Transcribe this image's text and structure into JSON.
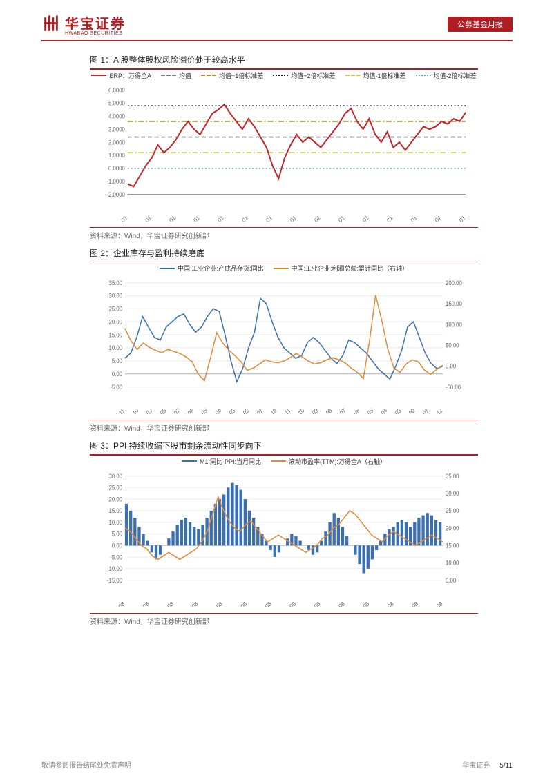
{
  "header": {
    "brand_cn": "华宝证券",
    "brand_en": "HWABAO SECURITIES",
    "tag": "公募基金月报",
    "logo_color": "#b01e23"
  },
  "footer": {
    "disclaimer": "敬请参阅报告结尾处免责声明",
    "brand": "华宝证券",
    "page": "5/11"
  },
  "fig1": {
    "title": "图 1：A 股整体股权风险溢价处于较高水平",
    "source": "资料来源：Wind，华宝证券研究创新部",
    "legend": [
      {
        "label": "ERP：万得全A",
        "color": "#c0272d",
        "dash": "solid"
      },
      {
        "label": "均值",
        "color": "#808080",
        "dash": "dashed"
      },
      {
        "label": "均值+1倍标准差",
        "color": "#b08c2a",
        "dash": "dashdot"
      },
      {
        "label": "均值+2倍标准差",
        "color": "#1a1a3a",
        "dash": "dotted"
      },
      {
        "label": "均值-1倍标准差",
        "color": "#c9c94a",
        "dash": "dashdot"
      },
      {
        "label": "均值-2倍标准差",
        "color": "#6aa6c9",
        "dash": "dotted"
      }
    ],
    "ylim": [
      -2.0,
      6.0
    ],
    "yticks": [
      "-2.0000",
      "-1.0000",
      "0.0000",
      "1.0000",
      "2.0000",
      "3.0000",
      "4.0000",
      "5.0000",
      "6.0000"
    ],
    "xticks": [
      "2010-01",
      "2011-01",
      "2012-01",
      "2013-01",
      "2014-01",
      "2015-01",
      "2016-01",
      "2017-01",
      "2018-01",
      "2019-01",
      "2020-01",
      "2021-01",
      "2022-01",
      "2023-01",
      "2024-01"
    ],
    "ref_lines": {
      "mean": 2.4,
      "p1": 3.6,
      "p2": 4.8,
      "m1": 1.2,
      "m2": 0.0
    },
    "erp": [
      -1.2,
      -1.4,
      -0.6,
      0.2,
      0.8,
      1.8,
      1.2,
      1.6,
      2.2,
      3.0,
      3.6,
      3.0,
      2.6,
      3.4,
      4.2,
      4.5,
      4.9,
      4.2,
      3.6,
      3.0,
      3.8,
      3.2,
      2.4,
      1.6,
      0.2,
      -0.8,
      0.8,
      1.8,
      2.6,
      2.0,
      2.4,
      2.0,
      1.6,
      2.2,
      2.8,
      3.4,
      4.2,
      4.6,
      3.6,
      3.0,
      3.8,
      2.6,
      2.0,
      2.8,
      1.6,
      2.0,
      1.4,
      2.0,
      2.6,
      3.2,
      3.0,
      3.2,
      3.6,
      3.4,
      3.8,
      3.6,
      4.3
    ]
  },
  "fig2": {
    "title": "图 2：企业库存与盈利持续磨底",
    "source": "资料来源：Wind，华宝证券研究创新部",
    "legend": [
      {
        "label": "中国:工业企业:产成品存货:同比",
        "color": "#3a6fb0"
      },
      {
        "label": "中国:工业企业:利润总额:累计同比（右轴）",
        "color": "#e08b3a"
      }
    ],
    "ylim_left": [
      -5,
      35
    ],
    "yticks_left": [
      "-5.00",
      "0.00",
      "5.00",
      "10.00",
      "15.00",
      "20.00",
      "25.00",
      "30.00",
      "35.00"
    ],
    "ylim_right": [
      -50,
      200
    ],
    "yticks_right": [
      "-50.00",
      "0.00",
      "50.00",
      "100.00",
      "150.00",
      "200.00"
    ],
    "xticks": [
      "2002-11",
      "2003-10",
      "2004-09",
      "2005-08",
      "2006-07",
      "2007-06",
      "2008-05",
      "2009-04",
      "2010-03",
      "2011-02",
      "2012-01",
      "2012-12",
      "2013-11",
      "2014-10",
      "2015-09",
      "2016-08",
      "2017-07",
      "2018-06",
      "2019-05",
      "2020-04",
      "2021-03",
      "2022-02",
      "2023-01",
      "2023-12"
    ],
    "inventory": [
      6,
      8,
      14,
      22,
      18,
      14,
      13,
      18,
      20,
      22,
      23,
      19,
      16,
      18,
      22,
      25,
      24,
      15,
      5,
      -3,
      2,
      10,
      16,
      29,
      27,
      20,
      14,
      10,
      8,
      6,
      7,
      12,
      14,
      12,
      9,
      6,
      4,
      7,
      13,
      12,
      10,
      8,
      5,
      2,
      0,
      -2,
      3,
      9,
      18,
      20,
      14,
      8,
      4,
      2,
      3
    ],
    "profit": [
      90,
      60,
      40,
      55,
      45,
      38,
      32,
      40,
      35,
      30,
      22,
      10,
      -20,
      -35,
      20,
      80,
      55,
      38,
      25,
      10,
      -10,
      -5,
      5,
      15,
      10,
      8,
      12,
      20,
      30,
      22,
      12,
      5,
      8,
      15,
      20,
      15,
      8,
      -5,
      -15,
      -30,
      60,
      170,
      110,
      40,
      -5,
      -15,
      5,
      15,
      10,
      -10,
      -20,
      -8,
      2
    ]
  },
  "fig3": {
    "title": "图 3：PPI 持续收缩下股市剩余流动性同步向下",
    "source": "资料来源：Wind，华宝证券研究创新部",
    "legend": [
      {
        "label": "M1:同比-PPI:当月同比",
        "color": "#3a6fb0"
      },
      {
        "label": "滚动市盈率(TTM):万得全A（右轴）",
        "color": "#e08b3a"
      }
    ],
    "ylim_left": [
      -15,
      30
    ],
    "yticks_left": [
      "-15.00",
      "-10.00",
      "-5.00",
      "0.00",
      "5.00",
      "10.00",
      "15.00",
      "20.00",
      "25.00",
      "30.00"
    ],
    "ylim_right": [
      5,
      35
    ],
    "yticks_right": [
      "5.00",
      "10.00",
      "15.00",
      "20.00",
      "25.00",
      "30.00",
      "35.00"
    ],
    "xticks": [
      "2010-08",
      "2011-08",
      "2012-08",
      "2013-08",
      "2014-08",
      "2015-08",
      "2016-08",
      "2017-08",
      "2018-08",
      "2019-08",
      "2020-08",
      "2021-08",
      "2022-08",
      "2023-08"
    ],
    "bars": [
      18,
      15,
      12,
      8,
      5,
      2,
      -3,
      -6,
      -4,
      0,
      3,
      6,
      9,
      11,
      12,
      10,
      8,
      7,
      9,
      12,
      15,
      18,
      20,
      22,
      25,
      27,
      26,
      24,
      20,
      15,
      12,
      8,
      5,
      2,
      -2,
      -5,
      -3,
      0,
      3,
      5,
      4,
      2,
      0,
      -2,
      -4,
      -3,
      2,
      6,
      10,
      14,
      12,
      8,
      4,
      0,
      -4,
      -8,
      -12,
      -10,
      -6,
      -2,
      2,
      5,
      7,
      8,
      10,
      11,
      10,
      8,
      10,
      12,
      13,
      14,
      13,
      11,
      10
    ],
    "pe": [
      20,
      19,
      17,
      15,
      14,
      12,
      11,
      12,
      13,
      12,
      11,
      12,
      13,
      14,
      16,
      19,
      24,
      29,
      25,
      22,
      20,
      19,
      21,
      22,
      20,
      18,
      16,
      17,
      18,
      17,
      16,
      15,
      14,
      13,
      14,
      15,
      17,
      18,
      20,
      21,
      23,
      25,
      24,
      22,
      20,
      18,
      17,
      16,
      18,
      19,
      18,
      17,
      16,
      15,
      16,
      17,
      18,
      17,
      16
    ]
  }
}
